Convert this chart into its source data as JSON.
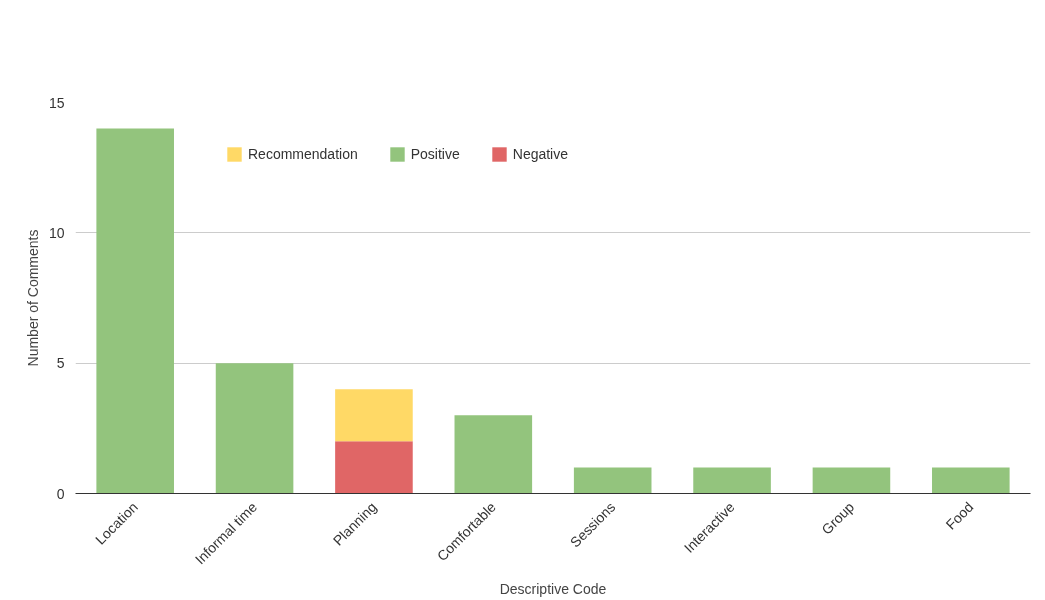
{
  "chart_data": {
    "type": "bar",
    "stacked": true,
    "xlabel": "Descriptive Code",
    "ylabel": "Number of Comments",
    "categories": [
      "Location",
      "Informal time",
      "Planning",
      "Comfortable",
      "Sessions",
      "Interactive",
      "Group",
      "Food"
    ],
    "series": [
      {
        "name": "Negative",
        "color": "#e06666",
        "values": [
          0,
          0,
          2,
          0,
          0,
          0,
          0,
          0
        ]
      },
      {
        "name": "Positive",
        "color": "#93c47d",
        "values": [
          14,
          5,
          0,
          3,
          1,
          1,
          1,
          1
        ]
      },
      {
        "name": "Recommendation",
        "color": "#ffd966",
        "values": [
          0,
          0,
          2,
          0,
          0,
          0,
          0,
          0
        ]
      }
    ],
    "ylim": [
      0,
      15
    ],
    "yticks": [
      0,
      5,
      10,
      15
    ],
    "grid": "y",
    "legend": "top"
  }
}
